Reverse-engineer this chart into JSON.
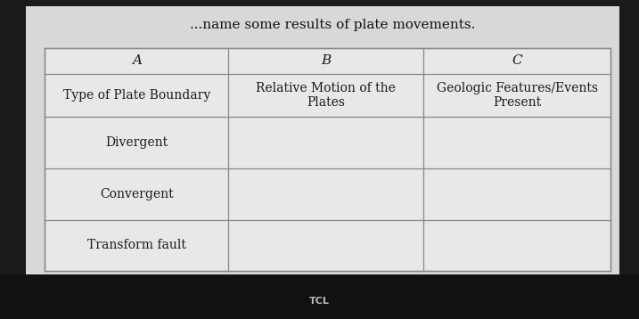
{
  "title_text": "...name some results of plate movements.",
  "outer_bg": "#1a1a1a",
  "whiteboard_bg": "#d8d8d8",
  "table_bg": "#e8e8e8",
  "table_bg_light": "#f0f0f0",
  "col_headers": [
    "A",
    "B",
    "C"
  ],
  "col_text_headers": [
    "Type of Plate Boundary",
    "Relative Motion of the\nPlates",
    "Geologic Features/Events\nPresent"
  ],
  "row_labels": [
    "Divergent",
    "Convergent",
    "Transform fault"
  ],
  "line_color": "#888888",
  "text_color": "#1a1a1a",
  "title_color": "#111111",
  "tcl_text": "TCL",
  "header_letter_fontsize": 11,
  "header_text_fontsize": 10,
  "cell_fontsize": 10,
  "title_fontsize": 11
}
